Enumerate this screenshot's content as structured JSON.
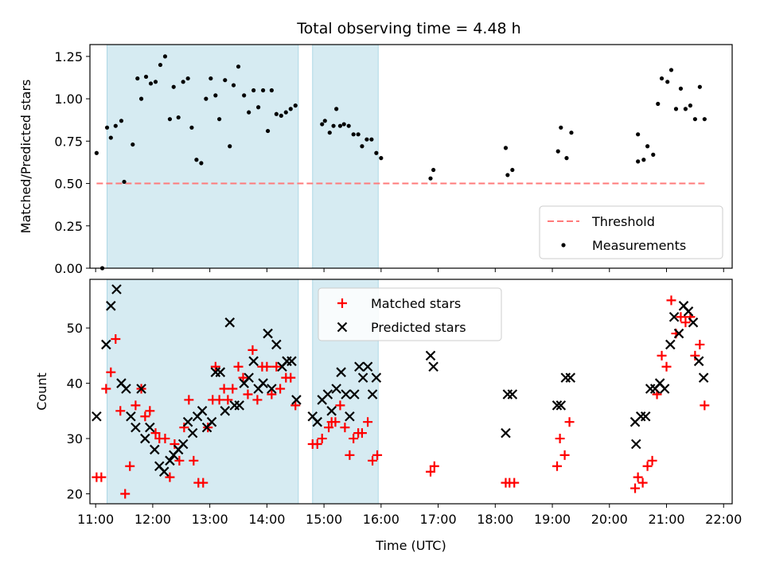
{
  "figure": {
    "title": "Total observing time = 4.48 h"
  },
  "chart_data": [
    {
      "type": "scatter",
      "title": "Total observing time = 4.48 h",
      "xlabel": "",
      "ylabel": "Matched/Predicted stars",
      "xlim": [
        "10:54",
        "22:09"
      ],
      "ylim": [
        0,
        1.32
      ],
      "yticks": [
        "0.00",
        "0.25",
        "0.50",
        "0.75",
        "1.00",
        "1.25"
      ],
      "legend_position": "lower right",
      "shaded_intervals": [
        [
          "11:12",
          "14:33"
        ],
        [
          "14:48",
          "15:57"
        ]
      ],
      "threshold": {
        "name": "Threshold",
        "color": "#ff7a7a",
        "y": 0.5,
        "x_start": "11:01",
        "x_end": "21:40"
      },
      "series": [
        {
          "name": "Measurements",
          "color": "#000000",
          "marker": "dot",
          "points": [
            [
              "11:01",
              0.68
            ],
            [
              "11:07",
              0.0
            ],
            [
              "11:12",
              0.83
            ],
            [
              "11:16",
              0.77
            ],
            [
              "11:21",
              0.84
            ],
            [
              "11:27",
              0.87
            ],
            [
              "11:30",
              0.51
            ],
            [
              "11:39",
              0.73
            ],
            [
              "11:44",
              1.12
            ],
            [
              "11:48",
              1.0
            ],
            [
              "11:53",
              1.13
            ],
            [
              "11:58",
              1.09
            ],
            [
              "12:03",
              1.1
            ],
            [
              "12:08",
              1.2
            ],
            [
              "12:13",
              1.25
            ],
            [
              "12:18",
              0.88
            ],
            [
              "12:22",
              1.07
            ],
            [
              "12:27",
              0.89
            ],
            [
              "12:32",
              1.1
            ],
            [
              "12:37",
              1.12
            ],
            [
              "12:41",
              0.83
            ],
            [
              "12:46",
              0.64
            ],
            [
              "12:51",
              0.62
            ],
            [
              "12:56",
              1.0
            ],
            [
              "13:01",
              1.12
            ],
            [
              "13:06",
              1.02
            ],
            [
              "13:10",
              0.88
            ],
            [
              "13:16",
              1.11
            ],
            [
              "13:21",
              0.72
            ],
            [
              "13:25",
              1.08
            ],
            [
              "13:30",
              1.19
            ],
            [
              "13:36",
              1.02
            ],
            [
              "13:41",
              0.92
            ],
            [
              "13:46",
              1.05
            ],
            [
              "13:51",
              0.95
            ],
            [
              "13:56",
              1.05
            ],
            [
              "14:01",
              0.81
            ],
            [
              "14:05",
              1.05
            ],
            [
              "14:10",
              0.91
            ],
            [
              "14:15",
              0.9
            ],
            [
              "14:20",
              0.92
            ],
            [
              "14:25",
              0.94
            ],
            [
              "14:30",
              0.96
            ],
            [
              "14:58",
              0.85
            ],
            [
              "15:01",
              0.87
            ],
            [
              "15:06",
              0.8
            ],
            [
              "15:10",
              0.84
            ],
            [
              "15:13",
              0.94
            ],
            [
              "15:17",
              0.84
            ],
            [
              "15:21",
              0.85
            ],
            [
              "15:26",
              0.84
            ],
            [
              "15:31",
              0.79
            ],
            [
              "15:36",
              0.79
            ],
            [
              "15:40",
              0.72
            ],
            [
              "15:45",
              0.76
            ],
            [
              "15:50",
              0.76
            ],
            [
              "15:55",
              0.68
            ],
            [
              "16:00",
              0.65
            ],
            [
              "16:52",
              0.53
            ],
            [
              "16:55",
              0.58
            ],
            [
              "18:11",
              0.71
            ],
            [
              "18:13",
              0.55
            ],
            [
              "18:18",
              0.58
            ],
            [
              "19:06",
              0.69
            ],
            [
              "19:09",
              0.83
            ],
            [
              "19:15",
              0.65
            ],
            [
              "19:20",
              0.8
            ],
            [
              "20:30",
              0.79
            ],
            [
              "20:30",
              0.63
            ],
            [
              "20:36",
              0.64
            ],
            [
              "20:40",
              0.72
            ],
            [
              "20:46",
              0.67
            ],
            [
              "20:51",
              0.97
            ],
            [
              "20:55",
              1.12
            ],
            [
              "21:01",
              1.1
            ],
            [
              "21:05",
              1.17
            ],
            [
              "21:10",
              0.94
            ],
            [
              "21:15",
              1.06
            ],
            [
              "21:20",
              0.94
            ],
            [
              "21:25",
              0.96
            ],
            [
              "21:30",
              0.88
            ],
            [
              "21:35",
              1.07
            ],
            [
              "21:40",
              0.88
            ]
          ]
        }
      ]
    },
    {
      "type": "scatter",
      "title": "",
      "xlabel": "Time (UTC)",
      "ylabel": "Count",
      "xlim": [
        "10:54",
        "22:09"
      ],
      "ylim": [
        18.2,
        58.8
      ],
      "xticks": [
        "11:00",
        "12:00",
        "13:00",
        "14:00",
        "15:00",
        "16:00",
        "17:00",
        "18:00",
        "19:00",
        "20:00",
        "21:00",
        "22:00"
      ],
      "yticks": [
        "20",
        "30",
        "40",
        "50"
      ],
      "legend_position": "upper center",
      "shaded_intervals": [
        [
          "11:12",
          "14:33"
        ],
        [
          "14:48",
          "15:57"
        ]
      ],
      "series": [
        {
          "name": "Matched stars",
          "color": "#ff0000",
          "marker": "plus",
          "points": [
            [
              "11:01",
              23
            ],
            [
              "11:06",
              23
            ],
            [
              "11:11",
              39
            ],
            [
              "11:16",
              42
            ],
            [
              "11:21",
              48
            ],
            [
              "11:26",
              35
            ],
            [
              "11:31",
              20
            ],
            [
              "11:36",
              25
            ],
            [
              "11:42",
              36
            ],
            [
              "11:48",
              39
            ],
            [
              "11:52",
              34
            ],
            [
              "11:57",
              35
            ],
            [
              "12:03",
              31
            ],
            [
              "12:07",
              30
            ],
            [
              "12:13",
              30
            ],
            [
              "12:18",
              23
            ],
            [
              "12:23",
              29
            ],
            [
              "12:28",
              26
            ],
            [
              "12:33",
              32
            ],
            [
              "12:38",
              37
            ],
            [
              "12:43",
              26
            ],
            [
              "12:48",
              22
            ],
            [
              "12:53",
              22
            ],
            [
              "12:58",
              32
            ],
            [
              "13:03",
              37
            ],
            [
              "13:06",
              43
            ],
            [
              "13:10",
              37
            ],
            [
              "13:15",
              39
            ],
            [
              "13:19",
              37
            ],
            [
              "13:24",
              39
            ],
            [
              "13:30",
              43
            ],
            [
              "13:35",
              41
            ],
            [
              "13:40",
              38
            ],
            [
              "13:45",
              46
            ],
            [
              "13:50",
              37
            ],
            [
              "13:55",
              43
            ],
            [
              "14:00",
              43
            ],
            [
              "14:05",
              38
            ],
            [
              "14:10",
              43
            ],
            [
              "14:14",
              39
            ],
            [
              "14:20",
              41
            ],
            [
              "14:25",
              41
            ],
            [
              "14:30",
              36
            ],
            [
              "14:48",
              29
            ],
            [
              "14:53",
              29
            ],
            [
              "14:58",
              30
            ],
            [
              "15:05",
              32
            ],
            [
              "15:08",
              33
            ],
            [
              "15:12",
              33
            ],
            [
              "15:17",
              36
            ],
            [
              "15:22",
              32
            ],
            [
              "15:27",
              27
            ],
            [
              "15:31",
              30
            ],
            [
              "15:36",
              31
            ],
            [
              "15:40",
              31
            ],
            [
              "15:46",
              33
            ],
            [
              "15:51",
              26
            ],
            [
              "15:56",
              27
            ],
            [
              "16:52",
              24
            ],
            [
              "16:56",
              25
            ],
            [
              "18:11",
              22
            ],
            [
              "18:15",
              22
            ],
            [
              "18:20",
              22
            ],
            [
              "19:05",
              25
            ],
            [
              "19:08",
              30
            ],
            [
              "19:13",
              27
            ],
            [
              "19:18",
              33
            ],
            [
              "20:27",
              21
            ],
            [
              "20:30",
              23
            ],
            [
              "20:35",
              22
            ],
            [
              "20:40",
              25
            ],
            [
              "20:45",
              26
            ],
            [
              "20:50",
              38
            ],
            [
              "20:55",
              45
            ],
            [
              "21:00",
              43
            ],
            [
              "21:05",
              55
            ],
            [
              "21:10",
              49
            ],
            [
              "21:15",
              52
            ],
            [
              "21:20",
              51
            ],
            [
              "21:25",
              52
            ],
            [
              "21:30",
              45
            ],
            [
              "21:35",
              47
            ],
            [
              "21:40",
              36
            ]
          ]
        },
        {
          "name": "Predicted stars",
          "color": "#000000",
          "marker": "cross",
          "points": [
            [
              "11:01",
              34
            ],
            [
              "11:11",
              47
            ],
            [
              "11:16",
              54
            ],
            [
              "11:22",
              57
            ],
            [
              "11:27",
              40
            ],
            [
              "11:32",
              39
            ],
            [
              "11:37",
              34
            ],
            [
              "11:42",
              32
            ],
            [
              "11:48",
              39
            ],
            [
              "11:52",
              30
            ],
            [
              "11:57",
              32
            ],
            [
              "12:02",
              28
            ],
            [
              "12:07",
              25
            ],
            [
              "12:12",
              24
            ],
            [
              "12:18",
              26
            ],
            [
              "12:22",
              27
            ],
            [
              "12:27",
              28
            ],
            [
              "12:32",
              29
            ],
            [
              "12:37",
              33
            ],
            [
              "12:42",
              31
            ],
            [
              "12:47",
              34
            ],
            [
              "12:52",
              35
            ],
            [
              "12:57",
              32
            ],
            [
              "13:02",
              33
            ],
            [
              "13:06",
              42
            ],
            [
              "13:11",
              42
            ],
            [
              "13:16",
              35
            ],
            [
              "13:21",
              51
            ],
            [
              "13:26",
              36
            ],
            [
              "13:31",
              36
            ],
            [
              "13:36",
              40
            ],
            [
              "13:41",
              41
            ],
            [
              "13:46",
              44
            ],
            [
              "13:51",
              39
            ],
            [
              "13:56",
              40
            ],
            [
              "14:01",
              49
            ],
            [
              "14:05",
              39
            ],
            [
              "14:10",
              47
            ],
            [
              "14:16",
              43
            ],
            [
              "14:21",
              44
            ],
            [
              "14:26",
              44
            ],
            [
              "14:31",
              37
            ],
            [
              "14:48",
              34
            ],
            [
              "14:53",
              33
            ],
            [
              "14:58",
              37
            ],
            [
              "15:04",
              38
            ],
            [
              "15:08",
              35
            ],
            [
              "15:13",
              39
            ],
            [
              "15:18",
              42
            ],
            [
              "15:23",
              38
            ],
            [
              "15:27",
              34
            ],
            [
              "15:32",
              38
            ],
            [
              "15:37",
              43
            ],
            [
              "15:41",
              41
            ],
            [
              "15:46",
              43
            ],
            [
              "15:51",
              38
            ],
            [
              "15:55",
              41
            ],
            [
              "16:52",
              45
            ],
            [
              "16:55",
              43
            ],
            [
              "18:11",
              31
            ],
            [
              "18:13",
              38
            ],
            [
              "18:18",
              38
            ],
            [
              "19:05",
              36
            ],
            [
              "19:09",
              36
            ],
            [
              "19:14",
              41
            ],
            [
              "19:19",
              41
            ],
            [
              "20:27",
              33
            ],
            [
              "20:28",
              29
            ],
            [
              "20:33",
              34
            ],
            [
              "20:38",
              34
            ],
            [
              "20:43",
              39
            ],
            [
              "20:48",
              39
            ],
            [
              "20:53",
              40
            ],
            [
              "20:58",
              39
            ],
            [
              "21:04",
              47
            ],
            [
              "21:08",
              52
            ],
            [
              "21:13",
              49
            ],
            [
              "21:18",
              54
            ],
            [
              "21:23",
              53
            ],
            [
              "21:28",
              51
            ],
            [
              "21:34",
              44
            ],
            [
              "21:39",
              41
            ]
          ]
        }
      ]
    }
  ]
}
